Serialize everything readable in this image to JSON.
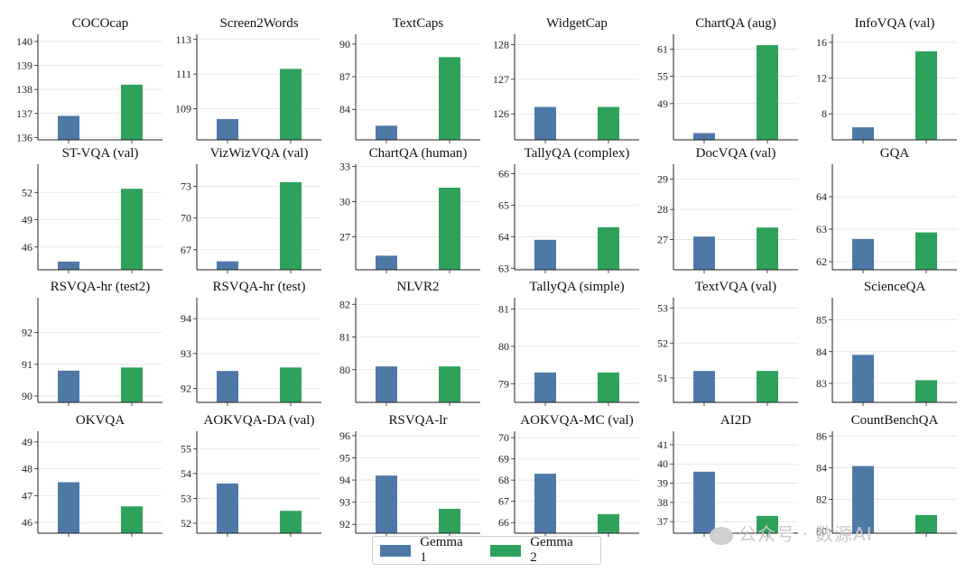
{
  "colors": {
    "gemma1": "#4e79a7",
    "gemma2": "#2ea25a"
  },
  "legend": {
    "items": [
      "Gemma 1",
      "Gemma 2"
    ]
  },
  "watermark": {
    "text": "公众号 · 数源AI"
  },
  "chart_data": [
    {
      "type": "bar",
      "title": "COCOcap",
      "categories": [
        "Gemma 1",
        "Gemma 2"
      ],
      "values": [
        136.9,
        138.2
      ],
      "ylim": [
        135.9,
        140.3
      ],
      "yticks": [
        136,
        137,
        138,
        139,
        140
      ]
    },
    {
      "type": "bar",
      "title": "Screen2Words",
      "categories": [
        "Gemma 1",
        "Gemma 2"
      ],
      "values": [
        108.4,
        111.3
      ],
      "ylim": [
        107.2,
        113.3
      ],
      "yticks": [
        109,
        111,
        113
      ]
    },
    {
      "type": "bar",
      "title": "TextCaps",
      "categories": [
        "Gemma 1",
        "Gemma 2"
      ],
      "values": [
        82.5,
        88.8
      ],
      "ylim": [
        81.2,
        90.9
      ],
      "yticks": [
        84,
        87,
        90
      ]
    },
    {
      "type": "bar",
      "title": "WidgetCap",
      "categories": [
        "Gemma 1",
        "Gemma 2"
      ],
      "values": [
        126.2,
        126.2
      ],
      "ylim": [
        125.25,
        128.3
      ],
      "yticks": [
        126,
        127,
        128
      ]
    },
    {
      "type": "bar",
      "title": "ChartQA (aug)",
      "categories": [
        "Gemma 1",
        "Gemma 2"
      ],
      "values": [
        42.5,
        61.9
      ],
      "ylim": [
        41.0,
        64.3
      ],
      "yticks": [
        49,
        55,
        61
      ]
    },
    {
      "type": "bar",
      "title": "InfoVQA (val)",
      "categories": [
        "Gemma 1",
        "Gemma 2"
      ],
      "values": [
        6.5,
        15.0
      ],
      "ylim": [
        5.1,
        16.9
      ],
      "yticks": [
        8,
        12,
        16
      ]
    },
    {
      "type": "bar",
      "title": "ST-VQA (val)",
      "categories": [
        "Gemma 1",
        "Gemma 2"
      ],
      "values": [
        44.4,
        52.4
      ],
      "ylim": [
        43.5,
        55.1
      ],
      "yticks": [
        46,
        49,
        52
      ]
    },
    {
      "type": "bar",
      "title": "VizWizVQA (val)",
      "categories": [
        "Gemma 1",
        "Gemma 2"
      ],
      "values": [
        65.9,
        73.4
      ],
      "ylim": [
        65.1,
        75.1
      ],
      "yticks": [
        67,
        70,
        73
      ]
    },
    {
      "type": "bar",
      "title": "ChartQA (human)",
      "categories": [
        "Gemma 1",
        "Gemma 2"
      ],
      "values": [
        25.4,
        31.2
      ],
      "ylim": [
        24.2,
        33.2
      ],
      "yticks": [
        27,
        30,
        33
      ]
    },
    {
      "type": "bar",
      "title": "TallyQA (complex)",
      "categories": [
        "Gemma 1",
        "Gemma 2"
      ],
      "values": [
        63.9,
        64.3
      ],
      "ylim": [
        62.95,
        66.3
      ],
      "yticks": [
        63,
        64,
        65,
        66
      ]
    },
    {
      "type": "bar",
      "title": "DocVQA (val)",
      "categories": [
        "Gemma 1",
        "Gemma 2"
      ],
      "values": [
        27.1,
        27.4
      ],
      "ylim": [
        26.0,
        29.5
      ],
      "yticks": [
        27,
        28,
        29
      ]
    },
    {
      "type": "bar",
      "title": "GQA",
      "categories": [
        "Gemma 1",
        "Gemma 2"
      ],
      "values": [
        62.7,
        62.9
      ],
      "ylim": [
        61.75,
        65.0
      ],
      "yticks": [
        62,
        63,
        64
      ]
    },
    {
      "type": "bar",
      "title": "RSVQA-hr (test2)",
      "categories": [
        "Gemma 1",
        "Gemma 2"
      ],
      "values": [
        90.8,
        90.9
      ],
      "ylim": [
        89.8,
        93.1
      ],
      "yticks": [
        90,
        91,
        92
      ]
    },
    {
      "type": "bar",
      "title": "RSVQA-hr (test)",
      "categories": [
        "Gemma 1",
        "Gemma 2"
      ],
      "values": [
        92.5,
        92.6
      ],
      "ylim": [
        91.6,
        94.6
      ],
      "yticks": [
        92,
        93,
        94
      ]
    },
    {
      "type": "bar",
      "title": "NLVR2",
      "categories": [
        "Gemma 1",
        "Gemma 2"
      ],
      "values": [
        80.1,
        80.1
      ],
      "ylim": [
        79.0,
        82.2
      ],
      "yticks": [
        80,
        81,
        82
      ]
    },
    {
      "type": "bar",
      "title": "TallyQA (simple)",
      "categories": [
        "Gemma 1",
        "Gemma 2"
      ],
      "values": [
        79.3,
        79.3
      ],
      "ylim": [
        78.5,
        81.3
      ],
      "yticks": [
        79,
        80,
        81
      ]
    },
    {
      "type": "bar",
      "title": "TextVQA (val)",
      "categories": [
        "Gemma 1",
        "Gemma 2"
      ],
      "values": [
        51.2,
        51.2
      ],
      "ylim": [
        50.3,
        53.3
      ],
      "yticks": [
        51,
        52,
        53
      ]
    },
    {
      "type": "bar",
      "title": "ScienceQA",
      "categories": [
        "Gemma 1",
        "Gemma 2"
      ],
      "values": [
        83.9,
        83.1
      ],
      "ylim": [
        82.4,
        85.7
      ],
      "yticks": [
        83,
        84,
        85
      ]
    },
    {
      "type": "bar",
      "title": "OKVQA",
      "categories": [
        "Gemma 1",
        "Gemma 2"
      ],
      "values": [
        47.5,
        46.6
      ],
      "ylim": [
        45.6,
        49.4
      ],
      "yticks": [
        46,
        47,
        48,
        49
      ]
    },
    {
      "type": "bar",
      "title": "AOKVQA-DA (val)",
      "categories": [
        "Gemma 1",
        "Gemma 2"
      ],
      "values": [
        53.6,
        52.5
      ],
      "ylim": [
        51.6,
        55.7
      ],
      "yticks": [
        52,
        53,
        54,
        55
      ]
    },
    {
      "type": "bar",
      "title": "RSVQA-lr",
      "categories": [
        "Gemma 1",
        "Gemma 2"
      ],
      "values": [
        94.2,
        92.7
      ],
      "ylim": [
        91.6,
        96.2
      ],
      "yticks": [
        92,
        93,
        94,
        95,
        96
      ]
    },
    {
      "type": "bar",
      "title": "AOKVQA-MC (val)",
      "categories": [
        "Gemma 1",
        "Gemma 2"
      ],
      "values": [
        68.3,
        66.4
      ],
      "ylim": [
        65.5,
        70.3
      ],
      "yticks": [
        66,
        67,
        68,
        69,
        70
      ]
    },
    {
      "type": "bar",
      "title": "AI2D",
      "categories": [
        "Gemma 1",
        "Gemma 2"
      ],
      "values": [
        39.6,
        37.3
      ],
      "ylim": [
        36.4,
        41.7
      ],
      "yticks": [
        37,
        38,
        39,
        40,
        41
      ]
    },
    {
      "type": "bar",
      "title": "CountBenchQA",
      "categories": [
        "Gemma 1",
        "Gemma 2"
      ],
      "values": [
        84.1,
        81.0
      ],
      "ylim": [
        79.85,
        86.3
      ],
      "yticks": [
        80,
        82,
        84,
        86
      ]
    }
  ]
}
